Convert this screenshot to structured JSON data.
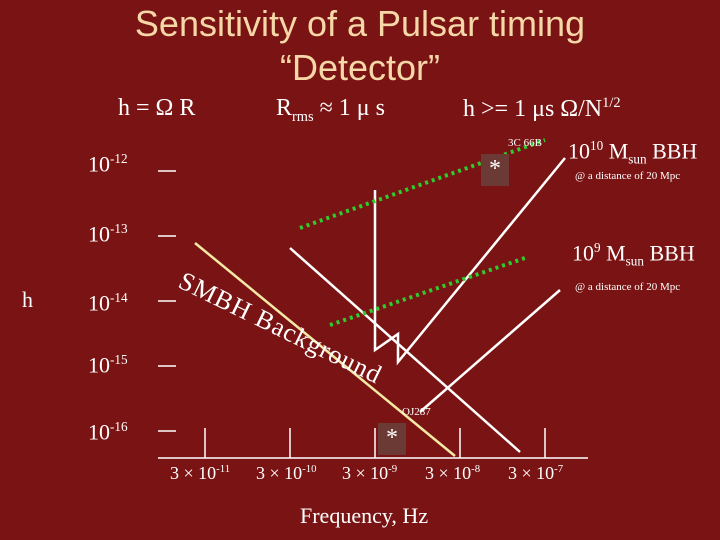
{
  "title": {
    "line1": "Sensitivity of a Pulsar timing",
    "line2": "“Detector”"
  },
  "equations": {
    "h_eq": "h = Ω R",
    "rrms_base": "R",
    "rrms_sub": "rms",
    "rrms_rest": " ≈ 1 μ s",
    "hge_base": "h >= 1 μs Ω/N",
    "hge_sup": "1/2"
  },
  "y_axis": {
    "label": "h",
    "ticks": [
      {
        "base": "10",
        "exp": "-12"
      },
      {
        "base": "10",
        "exp": "-13"
      },
      {
        "base": "10",
        "exp": "-14"
      },
      {
        "base": "10",
        "exp": "-15"
      },
      {
        "base": "10",
        "exp": "-16"
      }
    ]
  },
  "x_axis": {
    "label": "Frequency, Hz",
    "ticks": [
      {
        "base": "3 × 10",
        "exp": "-11"
      },
      {
        "base": "3 × 10",
        "exp": "-10"
      },
      {
        "base": "3 × 10",
        "exp": "-9"
      },
      {
        "base": "3 × 10",
        "exp": "-8"
      },
      {
        "base": "3 × 10",
        "exp": "-7"
      }
    ]
  },
  "sources": {
    "src1_name": "3C 66B",
    "src2_name": "OJ287",
    "marker": "*"
  },
  "bbh": {
    "big_pre": "10",
    "big_exp": "10",
    "big_mid": " M",
    "big_sub": "sun",
    "big_post": " BBH",
    "small_pre": "10",
    "small_exp": "9",
    "small_mid": " M",
    "small_sub": "sun",
    "small_post": " BBH",
    "distance": "@ a distance of 20 Mpc"
  },
  "background_label": [
    "S",
    "M",
    "B",
    "H",
    " ",
    "B",
    "a",
    "c",
    "k",
    "g",
    "r",
    "o",
    "u",
    "n",
    "d"
  ],
  "colors": {
    "background": "#7a1414",
    "title": "#f6d8a8",
    "background_curve": "#f3e9a6",
    "sensitivity": "#2ecc2e",
    "lines": "#ffffff"
  }
}
